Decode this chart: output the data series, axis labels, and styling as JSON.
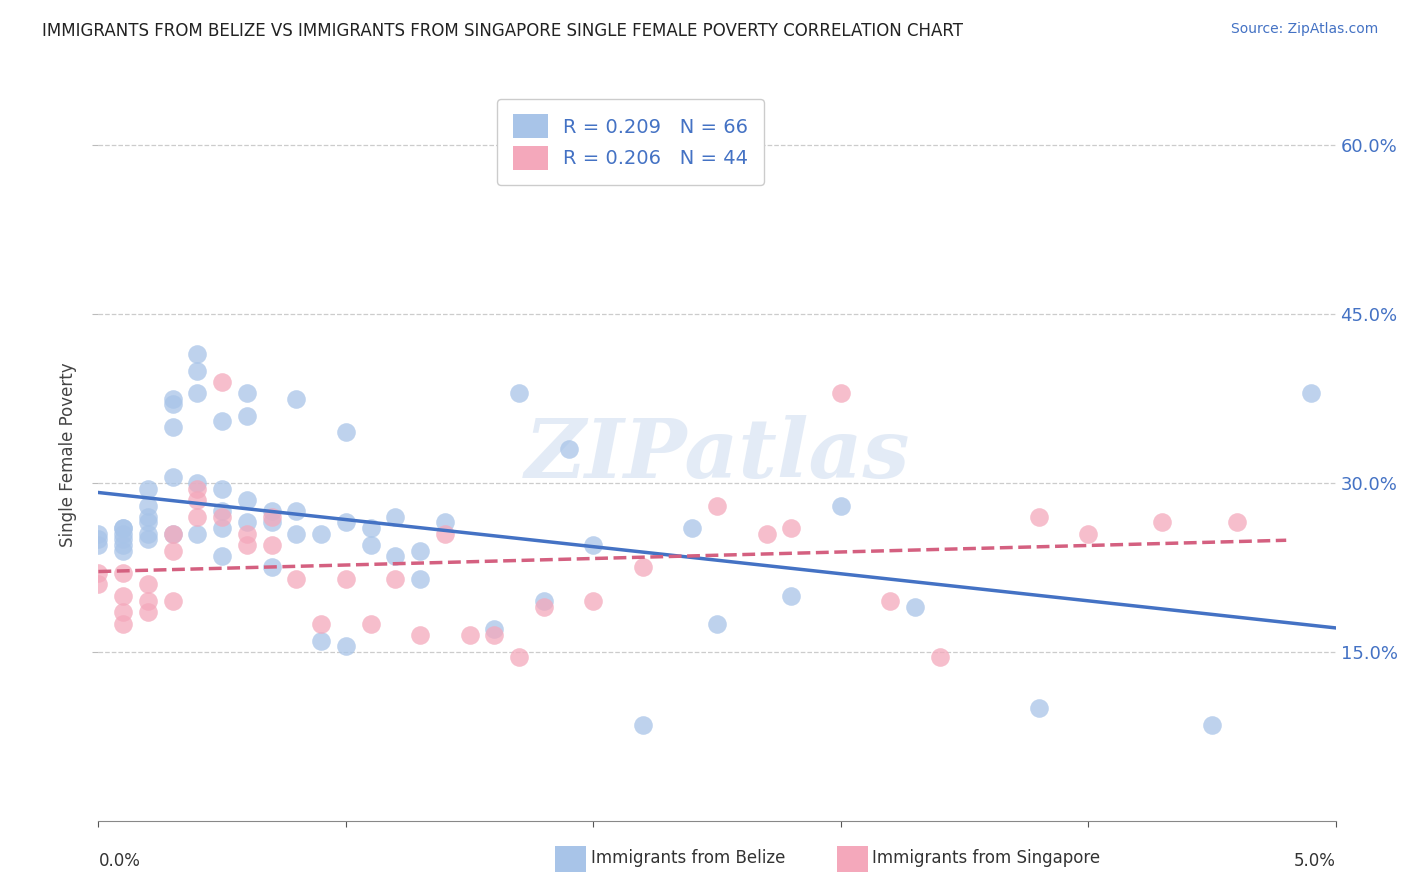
{
  "title": "IMMIGRANTS FROM BELIZE VS IMMIGRANTS FROM SINGAPORE SINGLE FEMALE POVERTY CORRELATION CHART",
  "source": "Source: ZipAtlas.com",
  "ylabel": "Single Female Poverty",
  "y_ticks_right": [
    "15.0%",
    "30.0%",
    "45.0%",
    "60.0%"
  ],
  "legend_belize": "R = 0.209   N = 66",
  "legend_singapore": "R = 0.206   N = 44",
  "color_belize": "#a8c4e8",
  "color_singapore": "#f4a8bb",
  "trendline_belize": "#4472c4",
  "trendline_singapore": "#d46080",
  "watermark": "ZIPatlas",
  "xlim": [
    0,
    0.05
  ],
  "ylim": [
    0,
    0.65
  ],
  "belize_x": [
    0.0,
    0.0,
    0.0,
    0.001,
    0.001,
    0.001,
    0.001,
    0.001,
    0.001,
    0.002,
    0.002,
    0.002,
    0.002,
    0.002,
    0.002,
    0.003,
    0.003,
    0.003,
    0.003,
    0.003,
    0.004,
    0.004,
    0.004,
    0.004,
    0.004,
    0.005,
    0.005,
    0.005,
    0.005,
    0.005,
    0.006,
    0.006,
    0.006,
    0.006,
    0.007,
    0.007,
    0.007,
    0.008,
    0.008,
    0.008,
    0.009,
    0.009,
    0.01,
    0.01,
    0.01,
    0.011,
    0.011,
    0.012,
    0.012,
    0.013,
    0.013,
    0.014,
    0.016,
    0.017,
    0.018,
    0.019,
    0.02,
    0.022,
    0.024,
    0.025,
    0.028,
    0.03,
    0.033,
    0.038,
    0.045,
    0.049
  ],
  "belize_y": [
    0.255,
    0.245,
    0.25,
    0.255,
    0.26,
    0.24,
    0.26,
    0.25,
    0.245,
    0.295,
    0.28,
    0.27,
    0.25,
    0.265,
    0.255,
    0.375,
    0.37,
    0.35,
    0.305,
    0.255,
    0.4,
    0.415,
    0.38,
    0.3,
    0.255,
    0.355,
    0.26,
    0.295,
    0.275,
    0.235,
    0.38,
    0.36,
    0.285,
    0.265,
    0.275,
    0.225,
    0.265,
    0.275,
    0.375,
    0.255,
    0.16,
    0.255,
    0.345,
    0.265,
    0.155,
    0.26,
    0.245,
    0.27,
    0.235,
    0.24,
    0.215,
    0.265,
    0.17,
    0.38,
    0.195,
    0.33,
    0.245,
    0.085,
    0.26,
    0.175,
    0.2,
    0.28,
    0.19,
    0.1,
    0.085,
    0.38
  ],
  "singapore_x": [
    0.0,
    0.0,
    0.001,
    0.001,
    0.001,
    0.001,
    0.002,
    0.002,
    0.002,
    0.003,
    0.003,
    0.003,
    0.004,
    0.004,
    0.004,
    0.005,
    0.005,
    0.006,
    0.006,
    0.007,
    0.007,
    0.008,
    0.009,
    0.01,
    0.011,
    0.012,
    0.013,
    0.014,
    0.015,
    0.016,
    0.017,
    0.018,
    0.02,
    0.022,
    0.025,
    0.027,
    0.028,
    0.03,
    0.032,
    0.034,
    0.038,
    0.04,
    0.043,
    0.046
  ],
  "singapore_y": [
    0.22,
    0.21,
    0.22,
    0.2,
    0.185,
    0.175,
    0.21,
    0.195,
    0.185,
    0.255,
    0.24,
    0.195,
    0.285,
    0.295,
    0.27,
    0.39,
    0.27,
    0.255,
    0.245,
    0.27,
    0.245,
    0.215,
    0.175,
    0.215,
    0.175,
    0.215,
    0.165,
    0.255,
    0.165,
    0.165,
    0.145,
    0.19,
    0.195,
    0.225,
    0.28,
    0.255,
    0.26,
    0.38,
    0.195,
    0.145,
    0.27,
    0.255,
    0.265,
    0.265
  ]
}
